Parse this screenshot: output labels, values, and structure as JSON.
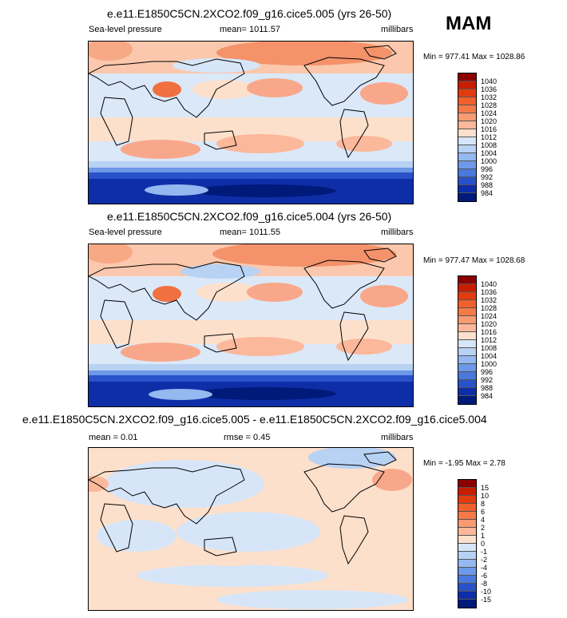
{
  "season": "MAM",
  "panels": [
    {
      "title": "e.e11.E1850C5CN.2XCO2.f09_g16.cice5.005 (yrs 26-50)",
      "left": "Sea-level pressure",
      "center": "mean= 1011.57",
      "right": "millibars",
      "minmax": "Min = 977.41 Max = 1028.86",
      "colorbar": {
        "labels": [
          "1040",
          "1036",
          "1032",
          "1028",
          "1024",
          "1020",
          "1016",
          "1012",
          "1008",
          "1004",
          "1000",
          "996",
          "992",
          "988",
          "984"
        ],
        "colors": [
          "#8b0000",
          "#c81e00",
          "#e03c10",
          "#f0602a",
          "#f47a48",
          "#f89b72",
          "#fbb89a",
          "#fde0cc",
          "#d6e6f8",
          "#b8d2f4",
          "#94b8ef",
          "#6e98e8",
          "#4a78dc",
          "#2a52c8",
          "#0e2ea8",
          "#001a7a"
        ]
      }
    },
    {
      "title": "e.e11.E1850C5CN.2XCO2.f09_g16.cice5.004 (yrs 26-50)",
      "left": "Sea-level pressure",
      "center": "mean= 1011.55",
      "right": "millibars",
      "minmax": "Min = 977.47 Max = 1028.68",
      "colorbar": {
        "labels": [
          "1040",
          "1036",
          "1032",
          "1028",
          "1024",
          "1020",
          "1016",
          "1012",
          "1008",
          "1004",
          "1000",
          "996",
          "992",
          "988",
          "984"
        ],
        "colors": [
          "#8b0000",
          "#c81e00",
          "#e03c10",
          "#f0602a",
          "#f47a48",
          "#f89b72",
          "#fbb89a",
          "#fde0cc",
          "#d6e6f8",
          "#b8d2f4",
          "#94b8ef",
          "#6e98e8",
          "#4a78dc",
          "#2a52c8",
          "#0e2ea8",
          "#001a7a"
        ]
      }
    },
    {
      "title": "e.e11.E1850C5CN.2XCO2.f09_g16.cice5.005 - e.e11.E1850C5CN.2XCO2.f09_g16.cice5.004",
      "left": "mean =  0.01",
      "center": "rmse =  0.45",
      "right": "millibars",
      "minmax": "Min =  -1.95 Max =   2.78",
      "colorbar": {
        "labels": [
          "15",
          "10",
          "8",
          "6",
          "4",
          "2",
          "1",
          "0",
          "-1",
          "-2",
          "-4",
          "-6",
          "-8",
          "-10",
          "-15"
        ],
        "colors": [
          "#8b0000",
          "#c81e00",
          "#e03c10",
          "#f0602a",
          "#f47a48",
          "#f89b72",
          "#fbb89a",
          "#fde0cc",
          "#d6e6f8",
          "#b8d2f4",
          "#94b8ef",
          "#6e98e8",
          "#4a78dc",
          "#2a52c8",
          "#0e2ea8",
          "#001a7a"
        ]
      }
    }
  ]
}
